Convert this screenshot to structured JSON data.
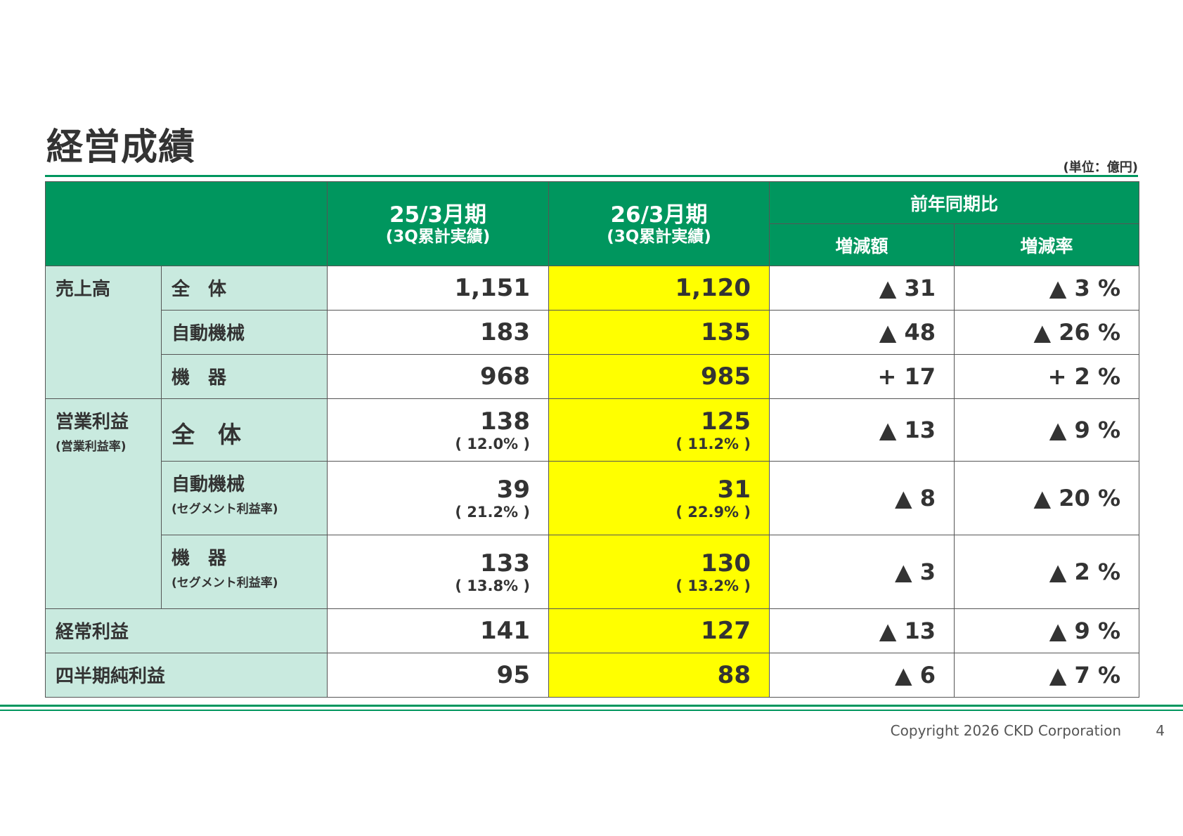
{
  "title": "経営成績",
  "unit": "(単位：億円)",
  "header": {
    "col1": {
      "main": "25/3月期",
      "sub": "(3Q累計実績)"
    },
    "col2": {
      "main": "26/3月期",
      "sub": "(3Q累計実績)"
    },
    "yoy": "前年同期比",
    "diff": "増減額",
    "rate": "増減率"
  },
  "sales": {
    "label": "売上高",
    "rows": [
      {
        "label": "全　体",
        "prev": "1,151",
        "curr": "1,120",
        "diff": "▲ 31",
        "rate": "▲ 3 %"
      },
      {
        "label": "自動機械",
        "prev": "183",
        "curr": "135",
        "diff": "▲ 48",
        "rate": "▲ 26 %"
      },
      {
        "label": "機　器",
        "prev": "968",
        "curr": "985",
        "diff": "+ 17",
        "rate": "+ 2 %"
      }
    ]
  },
  "op": {
    "label": "営業利益",
    "sublabel": "(営業利益率)",
    "rows": [
      {
        "label": "全　体",
        "note": "",
        "prev": "138",
        "prev_pct": "( 12.0% )",
        "curr": "125",
        "curr_pct": "( 11.2% )",
        "diff": "▲ 13",
        "rate": "▲ 9 %"
      },
      {
        "label": "自動機械",
        "note": "(セグメント利益率)",
        "prev": "39",
        "prev_pct": "( 21.2% )",
        "curr": "31",
        "curr_pct": "( 22.9% )",
        "diff": "▲ 8",
        "rate": "▲ 20 %"
      },
      {
        "label": "機　器",
        "note": "(セグメント利益率)",
        "prev": "133",
        "prev_pct": "( 13.8% )",
        "curr": "130",
        "curr_pct": "( 13.2% )",
        "diff": "▲ 3",
        "rate": "▲ 2 %"
      }
    ]
  },
  "ordinary": {
    "label": "経常利益",
    "prev": "141",
    "curr": "127",
    "diff": "▲ 13",
    "rate": "▲ 9 %"
  },
  "net": {
    "label": "四半期純利益",
    "prev": "95",
    "curr": "88",
    "diff": "▲ 6",
    "rate": "▲ 7 %"
  },
  "footer": {
    "copyright": "Copyright 2026 CKD Corporation",
    "page": "4"
  },
  "colors": {
    "green": "#00965e",
    "mint": "#c9eadf",
    "highlight": "#ffff00"
  }
}
